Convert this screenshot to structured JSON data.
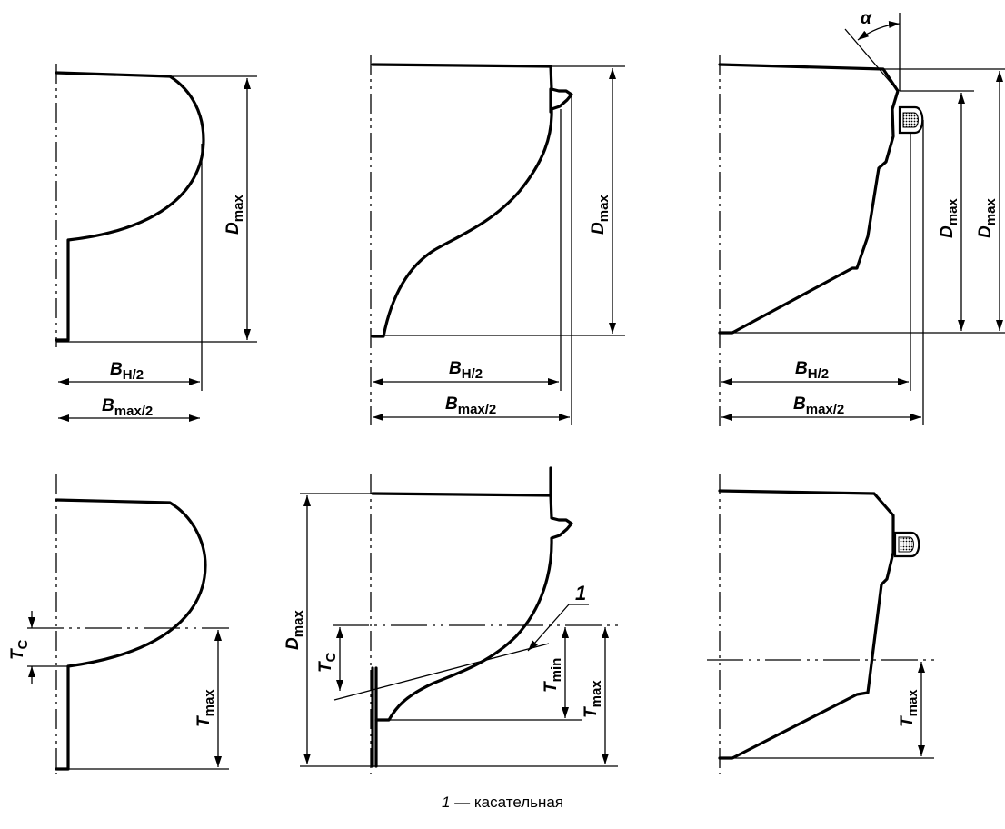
{
  "labels": {
    "D": "D",
    "max": "max",
    "min": "min",
    "B": "B",
    "H2": "H/2",
    "max2": "max/2",
    "T": "T",
    "C": "C",
    "alpha": "α",
    "callout": "1"
  },
  "caption": {
    "number": "1",
    "dash": " — ",
    "text": "касательная"
  }
}
